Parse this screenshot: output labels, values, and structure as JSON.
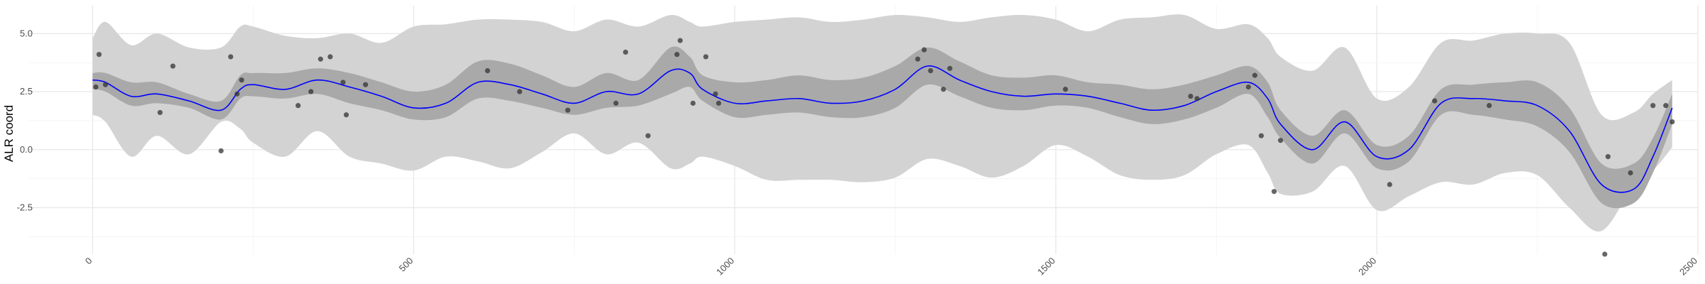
{
  "chart_data": {
    "type": "line",
    "title": "",
    "xlabel": "",
    "ylabel": "ALR coord",
    "xlim": [
      -100,
      2500
    ],
    "ylim": [
      -4.5,
      6.2
    ],
    "x_ticks": [
      0,
      500,
      1000,
      1500,
      2000,
      2500
    ],
    "x_tick_labels": [
      "0",
      "500",
      "1000",
      "1500",
      "2000",
      "2500"
    ],
    "y_ticks": [
      -2.5,
      0,
      2.5,
      5
    ],
    "y_tick_labels": [
      "-2.5",
      "0.0",
      "2.5",
      "5.0"
    ],
    "grid": true,
    "legend": "none",
    "colors": {
      "mean_line": "#0000ff",
      "inner_band": "#a9a9a9",
      "outer_band": "#d3d3d3",
      "points": "#333333",
      "grid_major": "#e6e6e6",
      "grid_minor": "#f2f2f2"
    },
    "series": [
      {
        "kind": "band_outer",
        "x": [
          0,
          20,
          60,
          100,
          150,
          200,
          230,
          250,
          300,
          350,
          400,
          450,
          500,
          550,
          600,
          650,
          700,
          750,
          800,
          850,
          900,
          930,
          950,
          1000,
          1050,
          1100,
          1150,
          1200,
          1250,
          1300,
          1350,
          1400,
          1450,
          1500,
          1550,
          1600,
          1650,
          1700,
          1750,
          1800,
          1830,
          1850,
          1900,
          1950,
          2000,
          2050,
          2100,
          2150,
          2200,
          2250,
          2300,
          2350,
          2400,
          2430,
          2460
        ],
        "lower": [
          1.5,
          1.2,
          -0.3,
          0.6,
          -0.2,
          1.2,
          0.9,
          0.3,
          -0.3,
          0.8,
          -0.3,
          -0.6,
          -0.9,
          -0.3,
          -0.5,
          -0.8,
          -0.1,
          0.7,
          -0.2,
          0.3,
          -0.8,
          -0.6,
          -0.3,
          -0.7,
          -1.3,
          -1.3,
          -1.3,
          -1.4,
          -1.2,
          -0.4,
          -0.7,
          -1.2,
          -0.7,
          0.2,
          -0.3,
          -1.1,
          -1.3,
          -1.1,
          -0.2,
          0.2,
          -1.0,
          -1.9,
          -1.8,
          -0.7,
          -2.6,
          -2.0,
          -1.4,
          -1.5,
          -1.0,
          -1.1,
          -2.5,
          -3.5,
          -1.5,
          -0.9,
          0.1
        ],
        "upper": [
          4.8,
          5.5,
          4.5,
          5.0,
          4.4,
          4.4,
          5.3,
          5.3,
          4.9,
          4.8,
          5.0,
          4.6,
          5.3,
          5.4,
          5.6,
          5.6,
          5.5,
          5.1,
          5.6,
          5.3,
          5.8,
          5.5,
          5.3,
          5.5,
          5.6,
          5.7,
          5.5,
          5.6,
          5.8,
          5.7,
          5.5,
          5.7,
          5.8,
          5.6,
          5.1,
          5.6,
          5.7,
          5.8,
          5.2,
          5.4,
          4.8,
          4.0,
          3.4,
          4.4,
          2.2,
          2.7,
          4.6,
          4.7,
          5.0,
          5.0,
          4.6,
          1.5,
          1.6,
          2.4,
          3.0
        ]
      },
      {
        "kind": "band_inner",
        "x": [
          0,
          20,
          60,
          100,
          150,
          200,
          230,
          250,
          300,
          350,
          400,
          450,
          500,
          550,
          600,
          650,
          700,
          750,
          800,
          850,
          900,
          930,
          950,
          1000,
          1050,
          1100,
          1150,
          1200,
          1250,
          1300,
          1350,
          1400,
          1450,
          1500,
          1550,
          1600,
          1650,
          1700,
          1750,
          1800,
          1830,
          1850,
          1900,
          1950,
          2000,
          2050,
          2100,
          2150,
          2200,
          2250,
          2300,
          2350,
          2400,
          2430,
          2460
        ],
        "lower": [
          2.6,
          2.5,
          1.9,
          2.0,
          1.8,
          1.3,
          2.2,
          2.3,
          2.2,
          2.4,
          2.0,
          1.7,
          1.3,
          1.4,
          2.2,
          2.1,
          1.8,
          1.5,
          1.8,
          1.9,
          2.4,
          2.7,
          2.1,
          1.4,
          1.5,
          1.6,
          1.4,
          1.4,
          1.8,
          2.8,
          2.3,
          1.8,
          1.7,
          1.9,
          1.8,
          1.4,
          1.1,
          1.3,
          1.8,
          2.4,
          1.4,
          0.5,
          -0.6,
          0.7,
          -0.8,
          -0.5,
          1.5,
          1.5,
          1.3,
          1.0,
          -0.1,
          -2.3,
          -2.3,
          -1.0,
          1.1
        ],
        "upper": [
          3.3,
          3.3,
          2.9,
          2.9,
          2.4,
          2.1,
          3.2,
          3.3,
          3.3,
          3.5,
          3.3,
          2.9,
          2.5,
          2.8,
          3.8,
          3.7,
          3.2,
          2.7,
          3.3,
          3.0,
          4.4,
          4.0,
          3.2,
          2.9,
          3.0,
          3.2,
          3.0,
          3.1,
          3.6,
          4.4,
          3.8,
          3.2,
          3.1,
          3.2,
          2.9,
          2.8,
          2.6,
          2.8,
          3.2,
          3.6,
          2.9,
          1.7,
          0.6,
          1.7,
          0.2,
          0.6,
          2.6,
          2.8,
          2.9,
          2.9,
          1.8,
          -0.6,
          -0.6,
          0.5,
          2.4
        ]
      },
      {
        "kind": "mean",
        "x": [
          0,
          20,
          60,
          100,
          150,
          200,
          230,
          250,
          300,
          350,
          400,
          450,
          500,
          550,
          600,
          650,
          700,
          750,
          800,
          850,
          900,
          930,
          950,
          1000,
          1050,
          1100,
          1150,
          1200,
          1250,
          1300,
          1350,
          1400,
          1450,
          1500,
          1550,
          1600,
          1650,
          1700,
          1750,
          1800,
          1830,
          1850,
          1900,
          1950,
          2000,
          2050,
          2100,
          2150,
          2200,
          2250,
          2300,
          2350,
          2400,
          2430,
          2460
        ],
        "y": [
          3.0,
          2.9,
          2.3,
          2.4,
          2.1,
          1.7,
          2.6,
          2.8,
          2.6,
          3.0,
          2.7,
          2.3,
          1.8,
          2.0,
          2.9,
          2.8,
          2.4,
          2.0,
          2.5,
          2.4,
          3.4,
          3.3,
          2.6,
          2.0,
          2.1,
          2.2,
          2.0,
          2.1,
          2.6,
          3.6,
          3.0,
          2.5,
          2.3,
          2.4,
          2.3,
          2.0,
          1.7,
          1.9,
          2.5,
          2.9,
          2.2,
          1.1,
          0.0,
          1.2,
          -0.3,
          0.0,
          2.0,
          2.2,
          2.1,
          1.9,
          0.8,
          -1.5,
          -1.7,
          -0.3,
          1.8
        ]
      },
      {
        "kind": "points",
        "x": [
          5,
          10,
          20,
          105,
          125,
          200,
          215,
          225,
          232,
          320,
          340,
          355,
          370,
          390,
          395,
          425,
          615,
          665,
          740,
          815,
          830,
          865,
          910,
          915,
          935,
          955,
          970,
          975,
          1285,
          1295,
          1305,
          1325,
          1335,
          1515,
          1710,
          1720,
          1800,
          1810,
          1820,
          1840,
          1850,
          2020,
          2090,
          2175,
          2355,
          2360,
          2395,
          2430,
          2450,
          2460
        ],
        "y": [
          2.7,
          4.1,
          2.8,
          1.6,
          3.6,
          -0.05,
          4.0,
          2.4,
          3.0,
          1.9,
          2.5,
          3.9,
          4.0,
          2.9,
          1.5,
          2.8,
          3.4,
          2.5,
          1.7,
          2.0,
          4.2,
          0.6,
          4.1,
          4.7,
          2.0,
          4.0,
          2.4,
          2.0,
          3.9,
          4.3,
          3.4,
          2.6,
          3.5,
          2.6,
          2.3,
          2.2,
          2.7,
          3.2,
          0.6,
          -1.8,
          0.4,
          -1.5,
          2.1,
          1.9,
          -4.5,
          -0.3,
          -1.0,
          1.9,
          1.9,
          1.2
        ]
      }
    ]
  }
}
